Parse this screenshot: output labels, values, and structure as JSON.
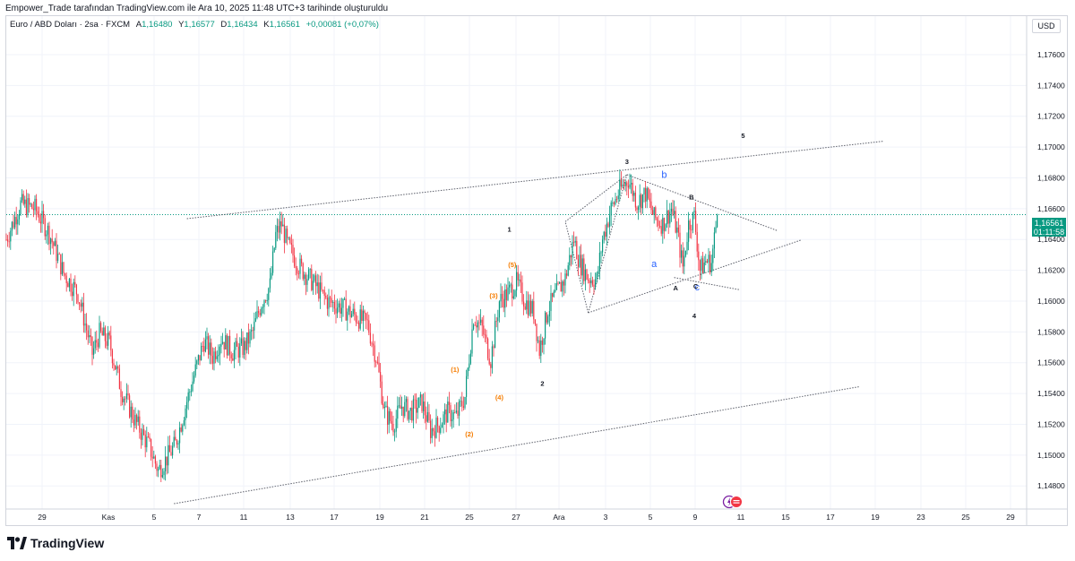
{
  "header": {
    "attribution": "Empower_Trade tarafından TradingView.com ile Ara 10, 2025 11:48 UTC+3 tarihinde oluşturuldu"
  },
  "legend": {
    "symbol": "Euro / ABD Doları · 2sa · FXCM",
    "open_label": "A",
    "open": "1,16480",
    "high_label": "Y",
    "high": "1,16577",
    "low_label": "D",
    "low": "1,16434",
    "close_label": "K",
    "close": "1,16561",
    "change": "+0,00081 (+0,07%)"
  },
  "price_axis": {
    "currency": "USD",
    "current_price": "1,16561",
    "countdown": "01:11:58"
  },
  "brand": {
    "name": "TradingView"
  },
  "colors": {
    "up": "#089981",
    "down": "#f23645",
    "wave_orange": "#f57c00",
    "wave_blue": "#2962ff",
    "wave_black": "#131722",
    "grid": "#f0f3fa",
    "current_line": "#089981"
  },
  "chart_data": {
    "type": "candlestick",
    "symbol": "EURUSD",
    "timeframe": "2h",
    "ylim": [
      1.1465,
      1.1785
    ],
    "y_ticks": [
      "1,14800",
      "1,15000",
      "1,15200",
      "1,15400",
      "1,15600",
      "1,15800",
      "1,16000",
      "1,16200",
      "1,16400",
      "1,16600",
      "1,16800",
      "1,17000",
      "1,17200",
      "1,17400",
      "1,17600"
    ],
    "x_ticks": [
      "29",
      "Kas",
      "5",
      "7",
      "11",
      "13",
      "17",
      "19",
      "21",
      "25",
      "27",
      "Ara",
      "3",
      "5",
      "9",
      "11",
      "15",
      "17",
      "19",
      "23",
      "25",
      "29"
    ],
    "current_price": 1.16561,
    "grid": true,
    "price_path": [
      {
        "i": 0,
        "p": 1.164
      },
      {
        "i": 10,
        "p": 1.1663
      },
      {
        "i": 20,
        "p": 1.166
      },
      {
        "i": 30,
        "p": 1.1644
      },
      {
        "i": 40,
        "p": 1.1618
      },
      {
        "i": 50,
        "p": 1.1605
      },
      {
        "i": 60,
        "p": 1.1566
      },
      {
        "i": 65,
        "p": 1.1579
      },
      {
        "i": 72,
        "p": 1.1573
      },
      {
        "i": 80,
        "p": 1.1543
      },
      {
        "i": 90,
        "p": 1.1522
      },
      {
        "i": 100,
        "p": 1.1505
      },
      {
        "i": 106,
        "p": 1.149
      },
      {
        "i": 112,
        "p": 1.1498
      },
      {
        "i": 118,
        "p": 1.1507
      },
      {
        "i": 126,
        "p": 1.1535
      },
      {
        "i": 132,
        "p": 1.1555
      },
      {
        "i": 138,
        "p": 1.1574
      },
      {
        "i": 144,
        "p": 1.1564
      },
      {
        "i": 150,
        "p": 1.1576
      },
      {
        "i": 158,
        "p": 1.1567
      },
      {
        "i": 166,
        "p": 1.157
      },
      {
        "i": 172,
        "p": 1.158
      },
      {
        "i": 178,
        "p": 1.1599
      },
      {
        "i": 184,
        "p": 1.161
      },
      {
        "i": 188,
        "p": 1.1643
      },
      {
        "i": 192,
        "p": 1.165
      },
      {
        "i": 196,
        "p": 1.1637
      },
      {
        "i": 204,
        "p": 1.1623
      },
      {
        "i": 214,
        "p": 1.1612
      },
      {
        "i": 224,
        "p": 1.16
      },
      {
        "i": 234,
        "p": 1.1596
      },
      {
        "i": 244,
        "p": 1.159
      },
      {
        "i": 252,
        "p": 1.1585
      },
      {
        "i": 258,
        "p": 1.1564
      },
      {
        "i": 264,
        "p": 1.1528
      },
      {
        "i": 270,
        "p": 1.152
      },
      {
        "i": 276,
        "p": 1.1532
      },
      {
        "i": 282,
        "p": 1.1528
      },
      {
        "i": 290,
        "p": 1.1534
      },
      {
        "i": 296,
        "p": 1.1516
      },
      {
        "i": 302,
        "p": 1.152
      },
      {
        "i": 308,
        "p": 1.1528
      },
      {
        "i": 314,
        "p": 1.1525
      },
      {
        "i": 320,
        "p": 1.1538
      },
      {
        "i": 326,
        "p": 1.159
      },
      {
        "i": 332,
        "p": 1.1582
      },
      {
        "i": 338,
        "p": 1.1562
      },
      {
        "i": 344,
        "p": 1.16
      },
      {
        "i": 350,
        "p": 1.1605
      },
      {
        "i": 356,
        "p": 1.1612
      },
      {
        "i": 362,
        "p": 1.16
      },
      {
        "i": 368,
        "p": 1.1593
      },
      {
        "i": 372,
        "p": 1.1568
      },
      {
        "i": 378,
        "p": 1.1595
      },
      {
        "i": 384,
        "p": 1.1605
      },
      {
        "i": 390,
        "p": 1.1615
      },
      {
        "i": 396,
        "p": 1.164
      },
      {
        "i": 400,
        "p": 1.1625
      },
      {
        "i": 406,
        "p": 1.1615
      },
      {
        "i": 412,
        "p": 1.1614
      },
      {
        "i": 416,
        "p": 1.164
      },
      {
        "i": 422,
        "p": 1.166
      },
      {
        "i": 428,
        "p": 1.1672
      },
      {
        "i": 434,
        "p": 1.1679
      },
      {
        "i": 440,
        "p": 1.1664
      },
      {
        "i": 446,
        "p": 1.167
      },
      {
        "i": 452,
        "p": 1.1654
      },
      {
        "i": 458,
        "p": 1.165
      },
      {
        "i": 464,
        "p": 1.166
      },
      {
        "i": 468,
        "p": 1.1645
      },
      {
        "i": 472,
        "p": 1.1622
      },
      {
        "i": 476,
        "p": 1.165
      },
      {
        "i": 480,
        "p": 1.1655
      },
      {
        "i": 484,
        "p": 1.162
      },
      {
        "i": 488,
        "p": 1.1626
      },
      {
        "i": 492,
        "p": 1.1625
      },
      {
        "i": 496,
        "p": 1.1656
      }
    ],
    "annotations": [
      {
        "text": "5",
        "color": "black",
        "x_idx": 514,
        "y": 1.1706
      },
      {
        "text": "3",
        "color": "black",
        "x_idx": 433,
        "y": 1.1689
      },
      {
        "text": "b",
        "color": "blue",
        "x_idx": 459,
        "y": 1.168
      },
      {
        "text": "B",
        "color": "black",
        "x_idx": 478,
        "y": 1.1666
      },
      {
        "text": "1",
        "color": "black",
        "x_idx": 351,
        "y": 1.1645
      },
      {
        "text": "(5)",
        "color": "orange",
        "x_idx": 353,
        "y": 1.1622
      },
      {
        "text": "a",
        "color": "blue",
        "x_idx": 452,
        "y": 1.1622
      },
      {
        "text": "A",
        "color": "black",
        "x_idx": 467,
        "y": 1.1607
      },
      {
        "text": "c",
        "color": "blue",
        "x_idx": 482,
        "y": 1.1607
      },
      {
        "text": "C",
        "color": "black",
        "x_idx": 481,
        "y": 1.1608
      },
      {
        "text": "(3)",
        "color": "orange",
        "x_idx": 340,
        "y": 1.1602
      },
      {
        "text": "4",
        "color": "black",
        "x_idx": 480,
        "y": 1.1589
      },
      {
        "text": "(1)",
        "color": "orange",
        "x_idx": 313,
        "y": 1.1554
      },
      {
        "text": "2",
        "color": "black",
        "x_idx": 374,
        "y": 1.1545
      },
      {
        "text": "(4)",
        "color": "orange",
        "x_idx": 344,
        "y": 1.1536
      },
      {
        "text": "(2)",
        "color": "orange",
        "x_idx": 323,
        "y": 1.1512
      }
    ],
    "trendlines": [
      {
        "name": "upper-channel",
        "from": {
          "x_idx": 126,
          "y": 1.16535
        },
        "to": {
          "x_idx": 612,
          "y": 1.17038
        }
      },
      {
        "name": "lower-channel",
        "from": {
          "x_idx": 117,
          "y": 1.14685
        },
        "to": {
          "x_idx": 595,
          "y": 1.15444
        }
      },
      {
        "name": "triangle-top",
        "from": {
          "x_idx": 433,
          "y": 1.16821
        },
        "to": {
          "x_idx": 538,
          "y": 1.16457
        }
      },
      {
        "name": "triangle-bottom",
        "from": {
          "x_idx": 406,
          "y": 1.15924
        },
        "to": {
          "x_idx": 555,
          "y": 1.16398
        }
      },
      {
        "name": "triangle-lower-edge",
        "from": {
          "x_idx": 466,
          "y": 1.16153
        },
        "to": {
          "x_idx": 512,
          "y": 1.16073
        }
      },
      {
        "name": "wave-fan-1",
        "from": {
          "x_idx": 390,
          "y": 1.16516
        },
        "to": {
          "x_idx": 433,
          "y": 1.16821
        }
      },
      {
        "name": "wave-fan-2",
        "from": {
          "x_idx": 406,
          "y": 1.15924
        },
        "to": {
          "x_idx": 433,
          "y": 1.16821
        }
      },
      {
        "name": "wave-fan-3",
        "from": {
          "x_idx": 406,
          "y": 1.15924
        },
        "to": {
          "x_idx": 390,
          "y": 1.16516
        }
      }
    ]
  }
}
